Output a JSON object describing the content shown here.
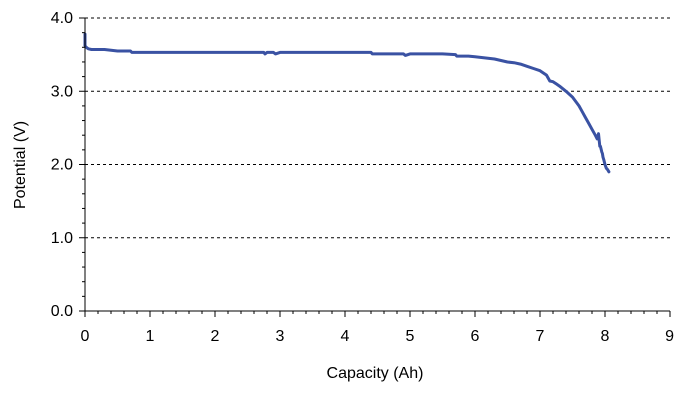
{
  "chart_data": {
    "type": "line",
    "title": "",
    "xlabel": "Capacity (Ah)",
    "ylabel": "Potential (V)",
    "xlim": [
      0,
      9
    ],
    "ylim": [
      0.0,
      4.0
    ],
    "x_ticks": [
      0,
      1,
      2,
      3,
      4,
      5,
      6,
      7,
      8,
      9
    ],
    "x_tick_labels": [
      "0",
      "1",
      "2",
      "3",
      "4",
      "5",
      "6",
      "7",
      "8",
      "9"
    ],
    "y_ticks": [
      0.0,
      1.0,
      2.0,
      3.0,
      4.0
    ],
    "y_tick_labels": [
      "0.0",
      "1.0",
      "2.0",
      "3.0",
      "4.0"
    ],
    "grid": "horizontal dashed",
    "legend": "none",
    "line_color": "#3A52A3",
    "series": [
      {
        "x": [
          0.0,
          0.0,
          0.02,
          0.05,
          0.1,
          0.2,
          0.3,
          0.5,
          0.7,
          0.72,
          1.0,
          1.5,
          2.0,
          2.5,
          2.75,
          2.77,
          2.8,
          2.9,
          2.93,
          3.0,
          3.5,
          4.0,
          4.4,
          4.42,
          4.5,
          4.9,
          4.93,
          5.0,
          5.5,
          5.7,
          5.72,
          5.9,
          6.0,
          6.2,
          6.3,
          6.4,
          6.5,
          6.6,
          6.7,
          6.8,
          6.9,
          7.0,
          7.1,
          7.15,
          7.2,
          7.25,
          7.3,
          7.4,
          7.5,
          7.6,
          7.65,
          7.7,
          7.75,
          7.8,
          7.85,
          7.88,
          7.9,
          7.92,
          7.93,
          7.95,
          7.96,
          7.97,
          7.98,
          8.0,
          8.02,
          8.04,
          8.06
        ],
        "y": [
          3.78,
          3.62,
          3.6,
          3.58,
          3.57,
          3.57,
          3.57,
          3.55,
          3.55,
          3.53,
          3.53,
          3.53,
          3.53,
          3.53,
          3.53,
          3.51,
          3.53,
          3.53,
          3.51,
          3.53,
          3.53,
          3.53,
          3.53,
          3.51,
          3.51,
          3.51,
          3.49,
          3.51,
          3.51,
          3.5,
          3.48,
          3.48,
          3.47,
          3.45,
          3.44,
          3.42,
          3.4,
          3.39,
          3.37,
          3.34,
          3.31,
          3.28,
          3.22,
          3.14,
          3.13,
          3.1,
          3.07,
          3.0,
          2.92,
          2.8,
          2.72,
          2.64,
          2.56,
          2.48,
          2.4,
          2.35,
          2.42,
          2.25,
          2.25,
          2.17,
          2.15,
          2.1,
          2.07,
          2.0,
          1.95,
          1.93,
          1.9
        ]
      }
    ]
  }
}
